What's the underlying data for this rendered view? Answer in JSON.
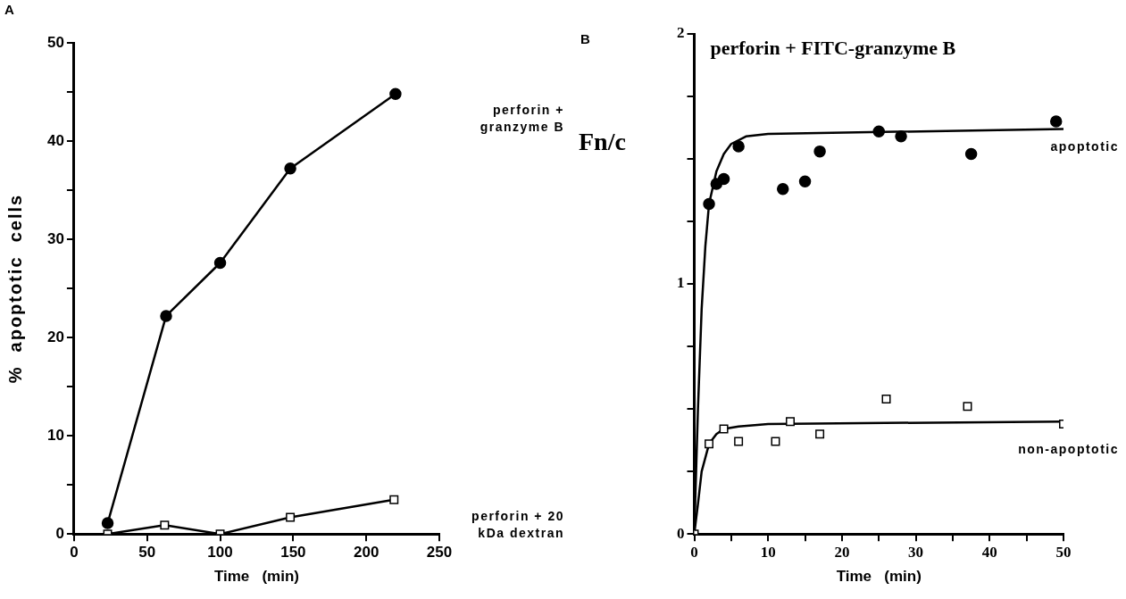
{
  "chart_data": [
    {
      "type": "line",
      "annotations": [
        "A"
      ],
      "xlabel": "Time   (min)",
      "ylabel": "%  apoptotic  cells",
      "xlim": [
        0,
        250
      ],
      "xticks": [
        0,
        50,
        100,
        150,
        200,
        250
      ],
      "ylim": [
        0,
        50
      ],
      "yticks": [
        0,
        {
          "value": 5,
          "label": null
        },
        10,
        {
          "value": 15,
          "label": null
        },
        20,
        {
          "value": 25,
          "label": null
        },
        30,
        {
          "value": 35,
          "label": null
        },
        40,
        {
          "value": 45,
          "label": null
        },
        50
      ],
      "grid": false,
      "legend": false,
      "line_style": "solid",
      "series": [
        {
          "name": "perforin + granzyme B",
          "color": "#000000",
          "marker": "circle",
          "x": [
            23,
            63,
            100,
            148,
            220
          ],
          "values": [
            1.1,
            22.2,
            27.6,
            37.2,
            44.8
          ]
        },
        {
          "name": "perforin + 20 kDa dextran",
          "color": "#000000",
          "marker": "square",
          "x": [
            23,
            62,
            100,
            148,
            219
          ],
          "values": [
            0,
            0.9,
            0,
            1.7,
            3.5
          ]
        }
      ]
    },
    {
      "type": "scatter",
      "annotations": [
        "B"
      ],
      "title": "perforin + FITC-granzyme B",
      "xlabel": "Time   (min)",
      "ylabel": "Fn/c",
      "xlim": [
        0,
        50
      ],
      "xticks": [
        0,
        {
          "value": 5,
          "label": null
        },
        10,
        {
          "value": 15,
          "label": null
        },
        20,
        {
          "value": 25,
          "label": null
        },
        30,
        {
          "value": 35,
          "label": null
        },
        40,
        {
          "value": 45,
          "label": null
        },
        50
      ],
      "ylim": [
        0,
        2
      ],
      "yticks": [
        0,
        {
          "value": 0.25,
          "label": null
        },
        {
          "value": 0.5,
          "label": null
        },
        {
          "value": 0.75,
          "label": null
        },
        1,
        {
          "value": 1.25,
          "label": null
        },
        {
          "value": 1.5,
          "label": null
        },
        {
          "value": 1.75,
          "label": null
        },
        2
      ],
      "grid": false,
      "legend": false,
      "series": [
        {
          "name": "apoptotic",
          "color": "#000000",
          "marker": "circle",
          "x": [
            2,
            3,
            4,
            6,
            12,
            15,
            17,
            25,
            28,
            37.5,
            49
          ],
          "values": [
            1.32,
            1.4,
            1.42,
            1.55,
            1.38,
            1.41,
            1.53,
            1.61,
            1.59,
            1.52,
            1.65
          ]
        },
        {
          "name": "non-apoptotic",
          "color": "#000000",
          "marker": "square",
          "x": [
            0,
            2,
            4,
            6,
            11,
            13,
            17,
            26,
            37,
            50
          ],
          "values": [
            0,
            0.36,
            0.42,
            0.37,
            0.37,
            0.45,
            0.4,
            0.54,
            0.51,
            0.44
          ]
        },
        {
          "type": "line",
          "color": "#000000",
          "marker": "none",
          "x": [
            0,
            0.5,
            1,
            1.5,
            2,
            3,
            4,
            5,
            7,
            10,
            50
          ],
          "values": [
            0,
            0.5,
            0.9,
            1.15,
            1.32,
            1.45,
            1.52,
            1.56,
            1.59,
            1.6,
            1.62
          ]
        },
        {
          "type": "line",
          "color": "#000000",
          "marker": "none",
          "x": [
            0,
            0.5,
            1,
            2,
            3,
            4,
            6,
            10,
            50
          ],
          "values": [
            0,
            0.12,
            0.25,
            0.36,
            0.4,
            0.42,
            0.43,
            0.44,
            0.45
          ]
        }
      ]
    }
  ]
}
